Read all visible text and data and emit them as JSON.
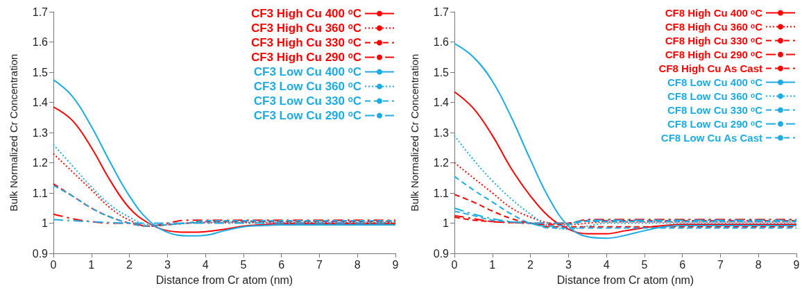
{
  "chart_data": [
    {
      "type": "line",
      "xlabel": "Distance from Cr atom (nm)",
      "ylabel": "Bulk Normalized Cr Concentration",
      "xlim": [
        0,
        9
      ],
      "xticks": [
        0,
        1,
        2,
        3,
        4,
        5,
        6,
        7,
        8,
        9
      ],
      "ylim": [
        0.9,
        1.7
      ],
      "yticks": [
        0.9,
        1,
        1.1,
        1.2,
        1.3,
        1.4,
        1.5,
        1.6,
        1.7
      ],
      "grid": false,
      "legend": "top right",
      "marker": "none",
      "x": [
        0,
        0.5,
        1,
        1.5,
        2,
        2.5,
        3,
        3.5,
        4,
        4.5,
        5,
        5.5,
        6,
        9
      ],
      "series": [
        {
          "name": "CF3 High Cu 400 ᵒC",
          "color": "#ff0000",
          "line_style": "solid",
          "values": [
            1.385,
            1.34,
            1.25,
            1.14,
            1.05,
            1.0,
            0.975,
            0.97,
            0.972,
            0.98,
            0.99,
            0.995,
            0.998,
            0.998
          ]
        },
        {
          "name": "CF3 High Cu 360 ᵒC",
          "color": "#ff0000",
          "line_style": "dotted",
          "values": [
            1.23,
            1.17,
            1.11,
            1.05,
            1.01,
            0.99,
            0.995,
            1.0,
            1.002,
            1.002,
            1.002,
            1.002,
            1.002,
            1.002
          ]
        },
        {
          "name": "CF3 High Cu 330 ᵒC",
          "color": "#ff0000",
          "line_style": "dashed",
          "values": [
            1.13,
            1.09,
            1.05,
            1.02,
            1.0,
            0.99,
            0.995,
            1.0,
            1.006,
            1.006,
            1.006,
            1.006,
            1.006,
            1.006
          ]
        },
        {
          "name": "CF3 High Cu 290 ᵒC",
          "color": "#ff0000",
          "line_style": "dashdot",
          "values": [
            1.03,
            1.015,
            1.005,
            1.0,
            1.0,
            0.99,
            1.0,
            1.01,
            1.01,
            1.01,
            1.01,
            1.01,
            1.01,
            1.01
          ]
        },
        {
          "name": "CF3 Low Cu 400 ᵒC",
          "color": "#1cabe2",
          "line_style": "solid",
          "values": [
            1.475,
            1.42,
            1.32,
            1.2,
            1.09,
            1.01,
            0.97,
            0.958,
            0.96,
            0.975,
            0.988,
            0.992,
            0.994,
            0.994
          ]
        },
        {
          "name": "CF3 Low Cu 360 ᵒC",
          "color": "#1cabe2",
          "line_style": "dotted",
          "values": [
            1.26,
            1.19,
            1.12,
            1.06,
            1.02,
            0.995,
            0.995,
            1.0,
            1.004,
            1.004,
            1.004,
            1.004,
            1.004,
            1.004
          ]
        },
        {
          "name": "CF3 Low Cu 330 ᵒC",
          "color": "#1cabe2",
          "line_style": "dashed",
          "values": [
            1.125,
            1.09,
            1.05,
            1.02,
            1.0,
            0.99,
            0.995,
            1.0,
            1.008,
            1.008,
            1.008,
            1.008,
            1.008,
            1.008
          ]
        },
        {
          "name": "CF3 Low Cu 290 ᵒC",
          "color": "#1cabe2",
          "line_style": "dashdot",
          "values": [
            1.012,
            1.008,
            1.005,
            1.002,
            1.0,
            1.0,
            1.0,
            1.0,
            1.0,
            1.0,
            1.0,
            1.0,
            1.0,
            1.0
          ]
        }
      ]
    },
    {
      "type": "line",
      "xlabel": "Distance from Cr atom (nm)",
      "ylabel": "Bulk Normalized Cr Concentration",
      "xlim": [
        0,
        9
      ],
      "xticks": [
        0,
        1,
        2,
        3,
        4,
        5,
        6,
        7,
        8,
        9
      ],
      "ylim": [
        0.9,
        1.7
      ],
      "yticks": [
        0.9,
        1,
        1.1,
        1.2,
        1.3,
        1.4,
        1.5,
        1.6,
        1.7
      ],
      "grid": false,
      "legend": "top right",
      "marker": "none",
      "x": [
        0,
        0.5,
        1,
        1.5,
        2,
        2.5,
        3,
        3.5,
        4,
        4.5,
        5,
        5.5,
        6,
        9
      ],
      "series": [
        {
          "name": "CF8 High Cu 400 ᵒC",
          "color": "#ff0000",
          "line_style": "solid",
          "values": [
            1.435,
            1.38,
            1.29,
            1.18,
            1.09,
            1.02,
            0.98,
            0.965,
            0.965,
            0.975,
            0.985,
            0.992,
            0.996,
            0.996
          ]
        },
        {
          "name": "CF8 High Cu 360 ᵒC",
          "color": "#ff0000",
          "line_style": "dotted",
          "values": [
            1.2,
            1.15,
            1.1,
            1.05,
            1.02,
            1.0,
            0.995,
            1.0,
            1.004,
            1.004,
            1.004,
            1.004,
            1.004,
            1.004
          ]
        },
        {
          "name": "CF8 High Cu 330 ᵒC",
          "color": "#ff0000",
          "line_style": "dashed",
          "values": [
            1.095,
            1.07,
            1.04,
            1.015,
            1.0,
            0.995,
            1.0,
            1.008,
            1.008,
            1.008,
            1.008,
            1.008,
            1.008,
            1.008
          ]
        },
        {
          "name": "CF8 High Cu 290 ᵒC",
          "color": "#ff0000",
          "line_style": "dashdot",
          "values": [
            1.025,
            1.015,
            1.005,
            1.002,
            1.0,
            1.0,
            1.0,
            1.012,
            1.012,
            1.012,
            1.012,
            1.012,
            1.012,
            1.012
          ]
        },
        {
          "name": "CF8 High Cu As Cast",
          "color": "#ff0000",
          "line_style": "dashed",
          "values": [
            1.02,
            1.01,
            1.005,
            1.002,
            1.0,
            0.988,
            0.988,
            0.988,
            0.988,
            0.988,
            0.988,
            0.988,
            0.988,
            0.988
          ]
        },
        {
          "name": "CF8 Low Cu 400 ᵒC",
          "color": "#1cabe2",
          "line_style": "solid",
          "values": [
            1.595,
            1.55,
            1.47,
            1.35,
            1.21,
            1.08,
            0.99,
            0.955,
            0.95,
            0.96,
            0.975,
            0.988,
            0.992,
            0.992
          ]
        },
        {
          "name": "CF8 Low Cu 360 ᵒC",
          "color": "#1cabe2",
          "line_style": "dotted",
          "values": [
            1.29,
            1.21,
            1.14,
            1.08,
            1.03,
            0.99,
            0.98,
            0.99,
            1.0,
            1.0,
            1.0,
            1.0,
            1.0,
            1.0
          ]
        },
        {
          "name": "CF8 Low Cu 330 ᵒC",
          "color": "#1cabe2",
          "line_style": "dashed",
          "values": [
            1.155,
            1.11,
            1.07,
            1.03,
            1.0,
            0.99,
            0.995,
            1.006,
            1.006,
            1.006,
            1.006,
            1.006,
            1.006,
            1.006
          ]
        },
        {
          "name": "CF8 Low Cu 290 ᵒC",
          "color": "#1cabe2",
          "line_style": "dashdot",
          "values": [
            1.05,
            1.03,
            1.015,
            1.005,
            1.0,
            1.0,
            1.0,
            1.01,
            1.01,
            1.01,
            1.01,
            1.01,
            1.01,
            1.01
          ]
        },
        {
          "name": "CF8 Low Cu As Cast",
          "color": "#1cabe2",
          "line_style": "dashed",
          "values": [
            1.04,
            1.025,
            1.01,
            1.004,
            1.0,
            0.984,
            0.984,
            0.984,
            0.984,
            0.984,
            0.984,
            0.984,
            0.984,
            0.984
          ]
        }
      ]
    }
  ]
}
